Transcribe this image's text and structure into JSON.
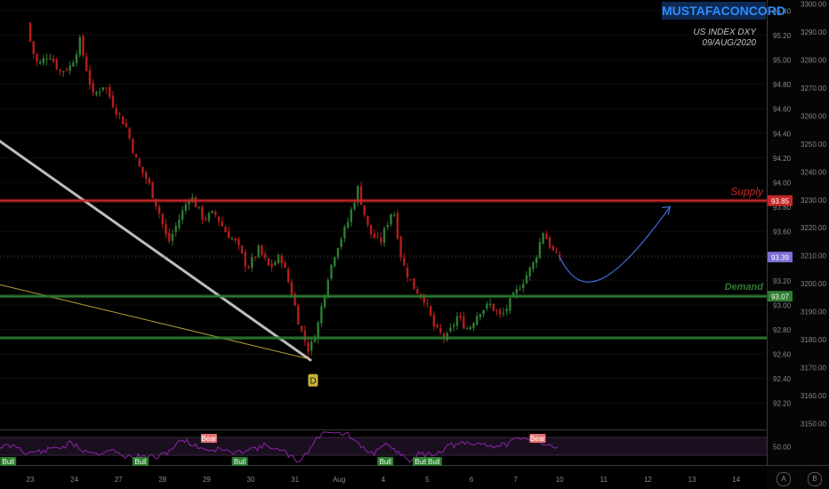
{
  "brand": "MUSTAFACONCORD",
  "subtitle": {
    "line1": "US INDEX DXY",
    "line2": "09/AUG/2020"
  },
  "icons": {
    "a": "A",
    "b": "B"
  },
  "colors": {
    "background": "#000000",
    "up": "#2e7d32",
    "down": "#b71c1c",
    "supply": "#c62828",
    "demand": "#2e7d32",
    "projection": "#3f6fd8",
    "trendline": "#bdbdbd",
    "thin_trendline": "#b8a23a",
    "rsi": "#8e24aa"
  },
  "chart_data": {
    "type": "candlestick",
    "symbol": "US INDEX DXY",
    "x_ticks": [
      "23",
      "24",
      "27",
      "28",
      "29",
      "30",
      "31",
      "Aug",
      "4",
      "5",
      "6",
      "7",
      "10",
      "11",
      "12",
      "13",
      "14"
    ],
    "y_ticks_left": [
      "95.40",
      "95.20",
      "95.00",
      "94.80",
      "94.60",
      "94.40",
      "94.20",
      "94.00",
      "93.80",
      "93.60",
      "93.40",
      "93.20",
      "93.00",
      "92.80",
      "92.60",
      "92.40",
      "92.20"
    ],
    "y_ticks_right": [
      "3300.00",
      "3290.00",
      "3280.00",
      "3270.00",
      "3260.00",
      "3250.00",
      "3240.00",
      "3230.00",
      "3220.00",
      "3210.00",
      "3200.00",
      "3190.00",
      "3180.00",
      "3170.00",
      "3160.00",
      "3150.00"
    ],
    "ylim": [
      92.1,
      95.45
    ],
    "levels": [
      {
        "name": "Supply",
        "value": 93.85,
        "label": "93.85"
      },
      {
        "name": "Demand",
        "value": 93.07,
        "label": "93.07"
      },
      {
        "name": "",
        "value": 92.73,
        "label": ""
      }
    ],
    "last_price": {
      "value": 93.39,
      "label": "93.39"
    },
    "marker": {
      "label": "D",
      "x_index": 6.4,
      "price": 92.53
    },
    "price_path": [
      [
        0.0,
        95.3
      ],
      [
        0.1,
        95.1
      ],
      [
        0.25,
        94.95
      ],
      [
        0.5,
        95.05
      ],
      [
        0.75,
        94.9
      ],
      [
        1.0,
        94.95
      ],
      [
        1.2,
        95.15
      ],
      [
        1.5,
        94.7
      ],
      [
        1.75,
        94.8
      ],
      [
        2.0,
        94.6
      ],
      [
        2.25,
        94.45
      ],
      [
        2.5,
        94.15
      ],
      [
        2.75,
        94.0
      ],
      [
        3.0,
        93.75
      ],
      [
        3.2,
        93.5
      ],
      [
        3.45,
        93.7
      ],
      [
        3.7,
        93.9
      ],
      [
        4.0,
        93.7
      ],
      [
        4.25,
        93.75
      ],
      [
        4.5,
        93.6
      ],
      [
        4.75,
        93.5
      ],
      [
        5.0,
        93.3
      ],
      [
        5.25,
        93.45
      ],
      [
        5.5,
        93.3
      ],
      [
        5.75,
        93.4
      ],
      [
        6.0,
        93.1
      ],
      [
        6.2,
        92.8
      ],
      [
        6.4,
        92.62
      ],
      [
        6.6,
        92.85
      ],
      [
        6.8,
        93.2
      ],
      [
        7.0,
        93.45
      ],
      [
        7.25,
        93.65
      ],
      [
        7.5,
        93.95
      ],
      [
        7.75,
        93.6
      ],
      [
        8.0,
        93.5
      ],
      [
        8.3,
        93.8
      ],
      [
        8.5,
        93.35
      ],
      [
        8.75,
        93.15
      ],
      [
        9.0,
        93.05
      ],
      [
        9.25,
        92.8
      ],
      [
        9.5,
        92.72
      ],
      [
        9.75,
        92.9
      ],
      [
        10.0,
        92.8
      ],
      [
        10.25,
        92.95
      ],
      [
        10.5,
        93.0
      ],
      [
        10.75,
        92.9
      ],
      [
        11.0,
        93.05
      ],
      [
        11.25,
        93.2
      ],
      [
        11.5,
        93.35
      ],
      [
        11.7,
        93.6
      ],
      [
        11.9,
        93.45
      ],
      [
        12.0,
        93.39
      ]
    ],
    "projection": [
      [
        12.0,
        93.39
      ],
      [
        12.5,
        93.02
      ],
      [
        13.2,
        93.15
      ],
      [
        14.5,
        93.8
      ]
    ],
    "trendlines": [
      {
        "from": [
          -0.75,
          94.35
        ],
        "to": [
          6.35,
          92.55
        ],
        "style": "thick"
      },
      {
        "from": [
          -0.75,
          93.17
        ],
        "to": [
          6.3,
          92.56
        ],
        "style": "thin"
      }
    ],
    "oscillator": {
      "ylabel": "50.00",
      "labels": [
        {
          "text": "Bull",
          "x_index": -0.5,
          "kind": "bull"
        },
        {
          "text": "Bull",
          "x_index": 2.5,
          "kind": "bull"
        },
        {
          "text": "Bear",
          "x_index": 4.05,
          "kind": "bear"
        },
        {
          "text": "Bull",
          "x_index": 4.75,
          "kind": "bull"
        },
        {
          "text": "Bull",
          "x_index": 8.05,
          "kind": "bull"
        },
        {
          "text": "Bull",
          "x_index": 8.85,
          "kind": "bull"
        },
        {
          "text": "Bull",
          "x_index": 9.15,
          "kind": "bull"
        },
        {
          "text": "Bear",
          "x_index": 11.5,
          "kind": "bear"
        }
      ]
    },
    "level_labels": {
      "supply": "Supply",
      "demand": "Demand"
    }
  }
}
